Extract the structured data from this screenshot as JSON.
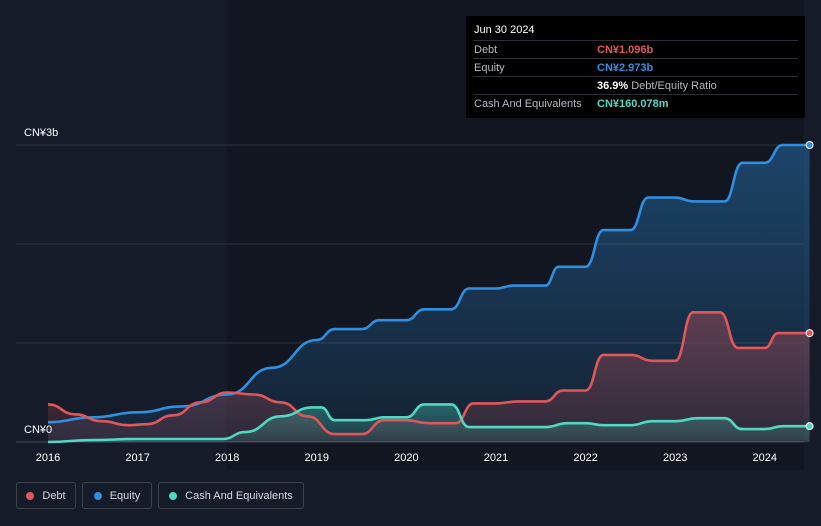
{
  "chart_data": {
    "type": "area",
    "x_unit": "year",
    "x_ticks": [
      "2016",
      "2017",
      "2018",
      "2019",
      "2020",
      "2021",
      "2022",
      "2023",
      "2024"
    ],
    "y_axis": {
      "min": 0,
      "max": 3,
      "unit": "CN¥ billions",
      "labels": [
        "CN¥0",
        "CN¥3b"
      ]
    },
    "series": [
      {
        "name": "Debt",
        "color": "#e15759",
        "points": [
          [
            2016.0,
            0.38
          ],
          [
            2016.3,
            0.28
          ],
          [
            2016.6,
            0.21
          ],
          [
            2016.9,
            0.17
          ],
          [
            2017.1,
            0.18
          ],
          [
            2017.4,
            0.27
          ],
          [
            2017.7,
            0.4
          ],
          [
            2018.0,
            0.5
          ],
          [
            2018.3,
            0.48
          ],
          [
            2018.6,
            0.4
          ],
          [
            2018.9,
            0.26
          ],
          [
            2019.2,
            0.08
          ],
          [
            2019.5,
            0.08
          ],
          [
            2019.75,
            0.22
          ],
          [
            2020.0,
            0.22
          ],
          [
            2020.25,
            0.19
          ],
          [
            2020.55,
            0.19
          ],
          [
            2020.75,
            0.39
          ],
          [
            2021.0,
            0.39
          ],
          [
            2021.25,
            0.41
          ],
          [
            2021.55,
            0.41
          ],
          [
            2021.75,
            0.52
          ],
          [
            2022.0,
            0.52
          ],
          [
            2022.2,
            0.88
          ],
          [
            2022.5,
            0.88
          ],
          [
            2022.75,
            0.82
          ],
          [
            2023.0,
            0.82
          ],
          [
            2023.2,
            1.31
          ],
          [
            2023.5,
            1.31
          ],
          [
            2023.7,
            0.95
          ],
          [
            2024.0,
            0.95
          ],
          [
            2024.15,
            1.1
          ],
          [
            2024.5,
            1.1
          ]
        ]
      },
      {
        "name": "Equity",
        "color": "#2f8fe0",
        "points": [
          [
            2016.0,
            0.2
          ],
          [
            2016.5,
            0.25
          ],
          [
            2017.0,
            0.3
          ],
          [
            2017.5,
            0.36
          ],
          [
            2018.0,
            0.48
          ],
          [
            2018.5,
            0.75
          ],
          [
            2019.0,
            1.03
          ],
          [
            2019.2,
            1.14
          ],
          [
            2019.5,
            1.14
          ],
          [
            2019.7,
            1.23
          ],
          [
            2020.0,
            1.23
          ],
          [
            2020.2,
            1.34
          ],
          [
            2020.5,
            1.34
          ],
          [
            2020.7,
            1.55
          ],
          [
            2021.0,
            1.55
          ],
          [
            2021.2,
            1.58
          ],
          [
            2021.55,
            1.58
          ],
          [
            2021.7,
            1.77
          ],
          [
            2022.0,
            1.77
          ],
          [
            2022.2,
            2.14
          ],
          [
            2022.5,
            2.14
          ],
          [
            2022.7,
            2.47
          ],
          [
            2023.0,
            2.47
          ],
          [
            2023.2,
            2.43
          ],
          [
            2023.55,
            2.43
          ],
          [
            2023.75,
            2.82
          ],
          [
            2024.0,
            2.82
          ],
          [
            2024.2,
            3.0
          ],
          [
            2024.5,
            3.0
          ]
        ]
      },
      {
        "name": "Cash And Equivalents",
        "color": "#4fd8c4",
        "points": [
          [
            2016.0,
            0.0
          ],
          [
            2016.5,
            0.02
          ],
          [
            2017.0,
            0.03
          ],
          [
            2017.5,
            0.03
          ],
          [
            2017.95,
            0.03
          ],
          [
            2018.2,
            0.1
          ],
          [
            2018.6,
            0.26
          ],
          [
            2018.95,
            0.35
          ],
          [
            2019.05,
            0.35
          ],
          [
            2019.2,
            0.22
          ],
          [
            2019.55,
            0.22
          ],
          [
            2019.75,
            0.25
          ],
          [
            2020.0,
            0.25
          ],
          [
            2020.2,
            0.38
          ],
          [
            2020.5,
            0.38
          ],
          [
            2020.7,
            0.15
          ],
          [
            2021.0,
            0.15
          ],
          [
            2021.3,
            0.15
          ],
          [
            2021.55,
            0.15
          ],
          [
            2021.8,
            0.19
          ],
          [
            2022.0,
            0.19
          ],
          [
            2022.2,
            0.17
          ],
          [
            2022.5,
            0.17
          ],
          [
            2022.75,
            0.21
          ],
          [
            2023.0,
            0.21
          ],
          [
            2023.25,
            0.24
          ],
          [
            2023.55,
            0.24
          ],
          [
            2023.75,
            0.13
          ],
          [
            2024.0,
            0.13
          ],
          [
            2024.2,
            0.16
          ],
          [
            2024.5,
            0.16
          ]
        ]
      }
    ],
    "grid": true,
    "legend_position": "bottom-left"
  },
  "tooltip": {
    "date": "Jun 30 2024",
    "rows": [
      {
        "label": "Debt",
        "value": "CN¥1.096b",
        "color": "#e15759"
      },
      {
        "label": "Equity",
        "value": "CN¥2.973b",
        "color": "#2f8fe0"
      },
      {
        "label": "",
        "value": "36.9%",
        "extra": "Debt/Equity Ratio",
        "color": "#ffffff"
      },
      {
        "label": "Cash And Equivalents",
        "value": "CN¥160.078m",
        "color": "#4fd8c4"
      }
    ]
  },
  "legend": [
    {
      "label": "Debt",
      "color": "#e15759"
    },
    {
      "label": "Equity",
      "color": "#2f8fe0"
    },
    {
      "label": "Cash And Equivalents",
      "color": "#4fd8c4"
    }
  ]
}
